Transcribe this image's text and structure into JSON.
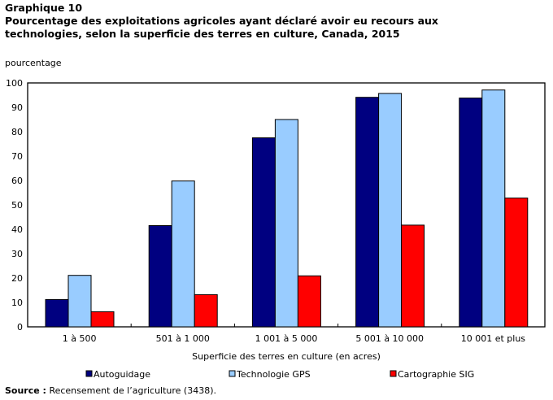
{
  "header": {
    "label": "Graphique  10",
    "title": "Pourcentage des exploitations agricoles ayant déclaré avoir eu recours aux technologies, selon la superficie des terres en culture, Canada, 2015"
  },
  "source": {
    "label": "Source :",
    "text": "Recensement de l’agriculture (3438)."
  },
  "chart_data": {
    "type": "bar",
    "title": "Pourcentage des exploitations agricoles ayant déclaré avoir eu recours aux technologies, selon la superficie des terres en culture, Canada, 2015",
    "ylabel": "pourcentage",
    "xlabel": "Superficie des terres en culture (en acres)",
    "ylim": [
      0,
      100
    ],
    "yticks": [
      0,
      10,
      20,
      30,
      40,
      50,
      60,
      70,
      80,
      90,
      100
    ],
    "categories": [
      "1 à 500",
      "501 à 1 000",
      "1 001 à 5 000",
      "5 001 à 10 000",
      "10 001 et plus"
    ],
    "series": [
      {
        "name": "Autoguidage",
        "color": "#000080",
        "values": [
          11.2,
          41.5,
          77.5,
          94.1,
          93.8
        ]
      },
      {
        "name": "Technologie GPS",
        "color": "#99ccff",
        "values": [
          21.1,
          59.8,
          85.0,
          95.7,
          97.1
        ]
      },
      {
        "name": "Cartographie SIG",
        "color": "#ff0000",
        "values": [
          6.2,
          13.2,
          20.9,
          41.7,
          52.8
        ]
      }
    ],
    "legend": "bottom",
    "grid": false
  }
}
